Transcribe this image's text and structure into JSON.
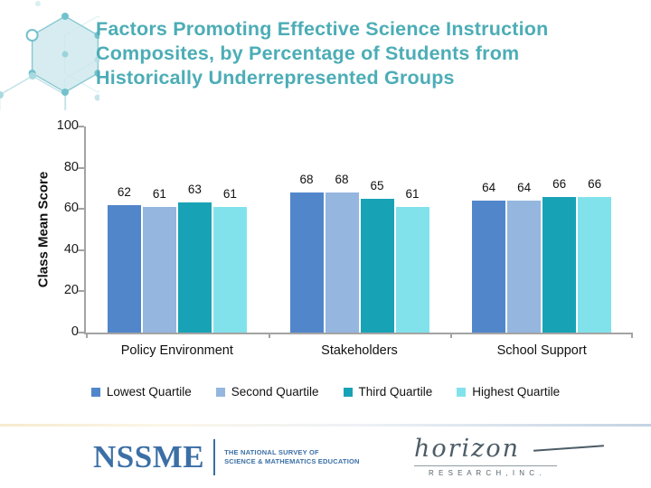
{
  "slide_title": {
    "lines": [
      "Factors Promoting Effective Science Instruction",
      "Composites, by Percentage of Students from",
      "Historically Underrepresented Groups"
    ],
    "color": "#4CADB6"
  },
  "chart_data": {
    "type": "bar",
    "ylabel": "Class Mean Score",
    "ylim": [
      0,
      100
    ],
    "yticks": [
      0,
      20,
      40,
      60,
      80,
      100
    ],
    "grid": false,
    "legend_position": "bottom",
    "bar_value_labels": true,
    "categories": [
      "Policy Environment",
      "Stakeholders",
      "School Support"
    ],
    "series": [
      {
        "name": "Lowest Quartile",
        "color": "#5186CB",
        "values": [
          62,
          68,
          64
        ]
      },
      {
        "name": "Second Quartile",
        "color": "#95B6DE",
        "values": [
          61,
          68,
          64
        ]
      },
      {
        "name": "Third Quartile",
        "color": "#18A2B5",
        "values": [
          63,
          65,
          66
        ]
      },
      {
        "name": "Highest Quartile",
        "color": "#82E2EC",
        "values": [
          61,
          61,
          66
        ]
      }
    ]
  },
  "footer": {
    "nssme_acronym": "NSSME",
    "nssme_tagline_line1": "THE NATIONAL SURVEY OF",
    "nssme_tagline_line2": "SCIENCE & MATHEMATICS EDUCATION",
    "horizon_script": "horizon",
    "horizon_subtext": "R E S E A R C H ,  I N C ."
  }
}
